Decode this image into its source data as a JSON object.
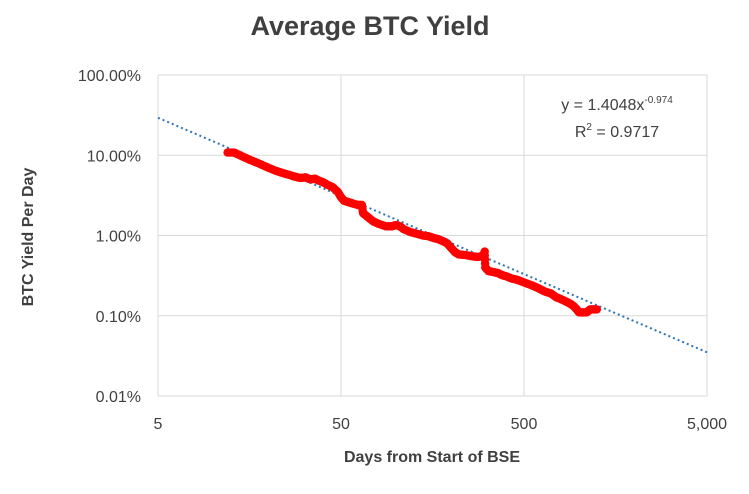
{
  "chart_data": {
    "type": "scatter",
    "title": "Average BTC Yield",
    "xlabel": "Days from Start of BSE",
    "ylabel": "BTC Yield Per Day",
    "x_scale": "log",
    "y_scale": "log",
    "xlim": [
      5,
      5000
    ],
    "ylim": [
      0.0001,
      1
    ],
    "x_ticks": [
      5,
      50,
      500,
      5000
    ],
    "x_tick_labels": [
      "5",
      "50",
      "500",
      "5,000"
    ],
    "y_ticks": [
      0.0001,
      0.001,
      0.01,
      0.1,
      1
    ],
    "y_tick_labels": [
      "0.01%",
      "0.10%",
      "1.00%",
      "10.00%",
      "100.00%"
    ],
    "grid": true,
    "marker_color": "#ff0000",
    "trendline_color": "#2e75b6",
    "grid_color": "#d9d9d9",
    "trendline": {
      "type": "power",
      "a": 1.4048,
      "b": -0.974,
      "equation_prefix": "y = 1.4048x",
      "equation_exponent": "-0.974",
      "r2_prefix": "R",
      "r2_exponent": "2",
      "r2_suffix": " = 0.9717"
    },
    "series": [
      {
        "points": [
          [
            12,
            0.108
          ],
          [
            13,
            0.108
          ],
          [
            14,
            0.1
          ],
          [
            15,
            0.093
          ],
          [
            16,
            0.087
          ],
          [
            18,
            0.078
          ],
          [
            20,
            0.07
          ],
          [
            22,
            0.064
          ],
          [
            24,
            0.06
          ],
          [
            26,
            0.057
          ],
          [
            28,
            0.054
          ],
          [
            30,
            0.052
          ],
          [
            32,
            0.053
          ],
          [
            34,
            0.05
          ],
          [
            36,
            0.051
          ],
          [
            38,
            0.048
          ],
          [
            40,
            0.046
          ],
          [
            42,
            0.043
          ],
          [
            45,
            0.04
          ],
          [
            48,
            0.035
          ],
          [
            50,
            0.03
          ],
          [
            52,
            0.027
          ],
          [
            55,
            0.026
          ],
          [
            58,
            0.025
          ],
          [
            62,
            0.024
          ],
          [
            65,
            0.024
          ],
          [
            66,
            0.019
          ],
          [
            70,
            0.017
          ],
          [
            75,
            0.015
          ],
          [
            80,
            0.014
          ],
          [
            88,
            0.013
          ],
          [
            95,
            0.013
          ],
          [
            100,
            0.0135
          ],
          [
            105,
            0.013
          ],
          [
            110,
            0.012
          ],
          [
            120,
            0.011
          ],
          [
            130,
            0.0105
          ],
          [
            140,
            0.01
          ],
          [
            150,
            0.0098
          ],
          [
            160,
            0.0093
          ],
          [
            170,
            0.009
          ],
          [
            180,
            0.0085
          ],
          [
            190,
            0.008
          ],
          [
            200,
            0.007
          ],
          [
            210,
            0.0062
          ],
          [
            220,
            0.0058
          ],
          [
            240,
            0.0057
          ],
          [
            260,
            0.0055
          ],
          [
            280,
            0.0054
          ],
          [
            300,
            0.0056
          ],
          [
            305,
            0.0063
          ],
          [
            307,
            0.004
          ],
          [
            320,
            0.0036
          ],
          [
            340,
            0.0035
          ],
          [
            360,
            0.0034
          ],
          [
            380,
            0.0032
          ],
          [
            400,
            0.0031
          ],
          [
            430,
            0.0029
          ],
          [
            460,
            0.0028
          ],
          [
            500,
            0.0026
          ],
          [
            550,
            0.0024
          ],
          [
            600,
            0.0022
          ],
          [
            650,
            0.002
          ],
          [
            700,
            0.0019
          ],
          [
            750,
            0.0017
          ],
          [
            800,
            0.0016
          ],
          [
            850,
            0.0015
          ],
          [
            900,
            0.0014
          ],
          [
            940,
            0.0013
          ],
          [
            970,
            0.0012
          ],
          [
            1000,
            0.0011
          ],
          [
            1050,
            0.0011
          ],
          [
            1100,
            0.0011
          ],
          [
            1150,
            0.0012
          ],
          [
            1200,
            0.0012
          ],
          [
            1250,
            0.0012
          ]
        ]
      }
    ]
  }
}
